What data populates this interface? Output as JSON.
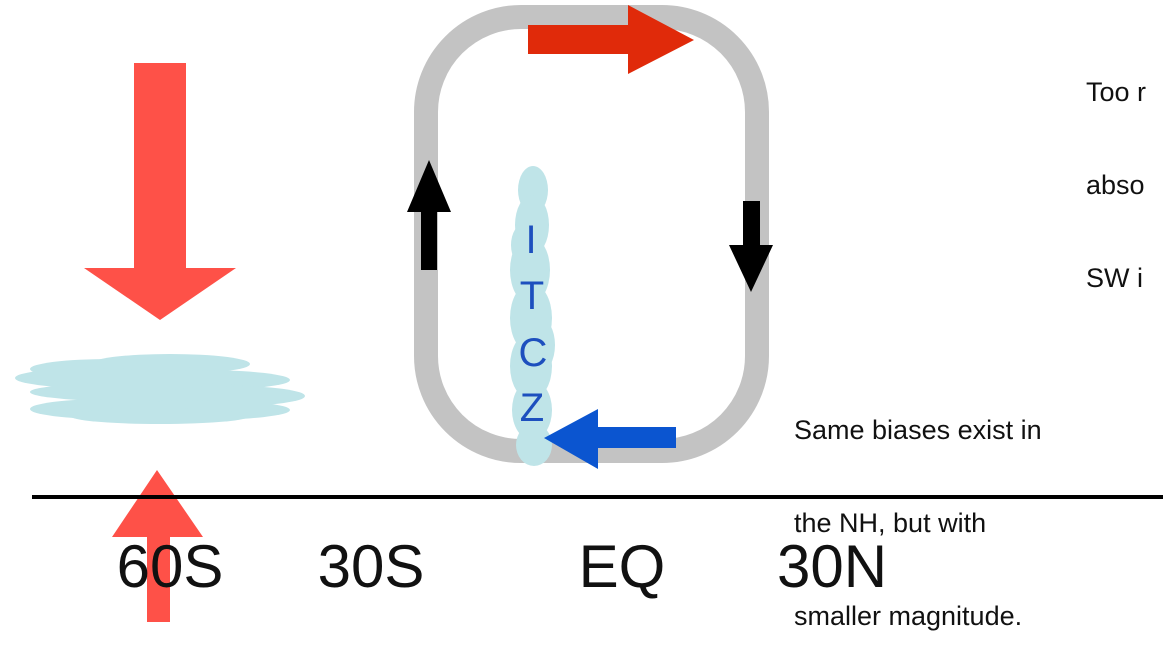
{
  "colors": {
    "background": "#ffffff",
    "circulation_loop": "#c3c3c3",
    "top_arrow": "#e02a0a",
    "shortwave_arrow": "#fe5148",
    "updraft_arrow": "#000000",
    "return_flow_arrow": "#0b55d0",
    "itcz_cloud": "#bfe4e8",
    "itcz_text": "#1d4fbe",
    "low_cloud": "#bfe4e8",
    "axis_line": "#000000",
    "text": "#111111"
  },
  "axis": {
    "ticks": [
      "60S",
      "30S",
      "EQ",
      "30N"
    ]
  },
  "itcz": {
    "letters": [
      "I",
      "T",
      "C",
      "Z"
    ]
  },
  "notes": {
    "top_right": [
      "Too r",
      "abso",
      "SW i"
    ],
    "nh_bias": [
      "Same biases exist in",
      "the NH, but with",
      "smaller magnitude."
    ]
  },
  "icons": {
    "incoming_sw": "down-arrow-icon",
    "reflected_sw": "up-arrow-icon",
    "ascent": "up-arrow-icon",
    "descent": "down-arrow-icon",
    "upper_flow": "right-arrow-icon",
    "surface_flow": "left-arrow-icon"
  }
}
